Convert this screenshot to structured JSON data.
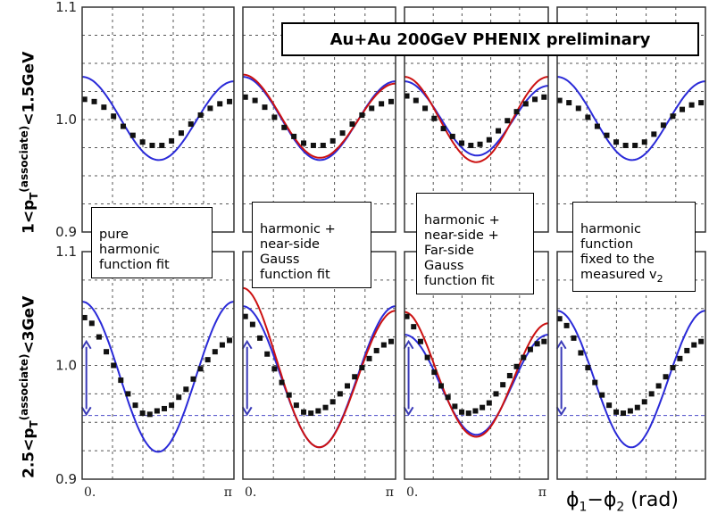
{
  "label": "Au+Au 200GeV PHENIX preliminary",
  "ylabel_top": {
    "pre": "1<p",
    "sub": "T",
    "sup": "(associate)",
    "post": "<1.5GeV"
  },
  "ylabel_bottom": {
    "pre": "2.5<p",
    "sub": "T",
    "sup": "(associate)",
    "post": "<3GeV"
  },
  "xlabel": {
    "phi1": "ϕ",
    "sub1": "1",
    "minus": "−ϕ",
    "sub2": "2",
    "unit": " (rad)"
  },
  "notes": [
    {
      "text": "pure\nharmonic\nfunction fit"
    },
    {
      "text": "harmonic +\nnear-side\nGauss\nfunction fit"
    },
    {
      "text": "harmonic +\nnear-side +\nFar-side\nGauss\nfunction fit"
    },
    {
      "text": "harmonic\nfunction\nfixed to the\nmeasured v",
      "sub": "2"
    }
  ],
  "colors": {
    "data": "#111111",
    "harmonic_fit": "#2a2ad8",
    "gauss_fit": "#cc1111",
    "arrow": "#3a3ab8",
    "reference_line": "#4a4ac8"
  },
  "chart_data": {
    "type": "scatter",
    "x_range": [
      0,
      3.1416
    ],
    "x_tick_labels": [
      "0.",
      "π"
    ],
    "rows": [
      {
        "name": "1<pT(associate)<1.5GeV",
        "ylim": [
          0.9,
          1.1
        ],
        "y_ticks": [
          0.9,
          1.0,
          1.1
        ],
        "y_tick_labels": [
          "0.9",
          "1.0",
          "1.1"
        ],
        "panels": [
          {
            "data": {
              "x": [
                0.05,
                0.25,
                0.45,
                0.65,
                0.85,
                1.05,
                1.25,
                1.45,
                1.65,
                1.85,
                2.05,
                2.25,
                2.45,
                2.65,
                2.85,
                3.05
              ],
              "y": [
                1.018,
                1.016,
                1.011,
                1.003,
                0.994,
                0.986,
                0.98,
                0.977,
                0.977,
                0.981,
                0.988,
                0.996,
                1.004,
                1.01,
                1.014,
                1.016
              ]
            },
            "fits": [
              {
                "kind": "harmonic",
                "color": "harmonic_fit",
                "y0": 1.0,
                "a1": 0.001,
                "a2": 0.018
              }
            ]
          },
          {
            "data": {
              "x": [
                0.05,
                0.25,
                0.45,
                0.65,
                0.85,
                1.05,
                1.25,
                1.45,
                1.65,
                1.85,
                2.05,
                2.25,
                2.45,
                2.65,
                2.85,
                3.05
              ],
              "y": [
                1.02,
                1.017,
                1.011,
                1.002,
                0.993,
                0.985,
                0.979,
                0.977,
                0.977,
                0.981,
                0.988,
                0.996,
                1.004,
                1.01,
                1.014,
                1.016
              ]
            },
            "fits": [
              {
                "kind": "harmonic",
                "color": "harmonic_fit",
                "y0": 1.0,
                "a1": 0.001,
                "a2": 0.018
              },
              {
                "kind": "harmonic+near",
                "color": "gauss_fit",
                "y0": 1.0,
                "a1": 0.001,
                "a2": 0.017,
                "near_amp": 0.004,
                "near_sigma": 0.5
              }
            ]
          },
          {
            "data": {
              "x": [
                0.05,
                0.25,
                0.45,
                0.65,
                0.85,
                1.05,
                1.25,
                1.45,
                1.65,
                1.85,
                2.05,
                2.25,
                2.45,
                2.65,
                2.85,
                3.05
              ],
              "y": [
                1.021,
                1.017,
                1.01,
                1.001,
                0.992,
                0.985,
                0.979,
                0.977,
                0.978,
                0.982,
                0.99,
                0.999,
                1.007,
                1.014,
                1.018,
                1.02
              ]
            },
            "fits": [
              {
                "kind": "harmonic",
                "color": "harmonic_fit",
                "y0": 1.0,
                "a1": 0.001,
                "a2": 0.016
              },
              {
                "kind": "harmonic+near+far",
                "color": "gauss_fit",
                "y0": 0.998,
                "a1": 0.0,
                "a2": 0.018,
                "near_amp": 0.004,
                "near_sigma": 0.5,
                "far_amp": 0.004,
                "far_sigma": 0.6
              }
            ]
          },
          {
            "data": {
              "x": [
                0.05,
                0.25,
                0.45,
                0.65,
                0.85,
                1.05,
                1.25,
                1.45,
                1.65,
                1.85,
                2.05,
                2.25,
                2.45,
                2.65,
                2.85,
                3.05
              ],
              "y": [
                1.017,
                1.015,
                1.01,
                1.002,
                0.994,
                0.986,
                0.98,
                0.977,
                0.977,
                0.98,
                0.987,
                0.995,
                1.003,
                1.009,
                1.013,
                1.015
              ]
            },
            "fits": [
              {
                "kind": "harmonic",
                "color": "harmonic_fit",
                "y0": 1.0,
                "a1": 0.001,
                "a2": 0.018
              }
            ]
          }
        ]
      },
      {
        "name": "2.5<pT(associate)<3GeV",
        "ylim": [
          0.9,
          1.1
        ],
        "y_ticks": [
          0.9,
          1.0,
          1.1
        ],
        "y_tick_labels": [
          "0.9",
          "1.0",
          "1.1"
        ],
        "reference_y": 0.956,
        "arrow": {
          "x": 0.05,
          "y_from": 0.957,
          "y_to": 1.021
        },
        "panels": [
          {
            "data": {
              "x": [
                0.05,
                0.2,
                0.35,
                0.5,
                0.65,
                0.8,
                0.95,
                1.1,
                1.25,
                1.4,
                1.55,
                1.7,
                1.85,
                2.0,
                2.15,
                2.3,
                2.45,
                2.6,
                2.75,
                2.9,
                3.05
              ],
              "y": [
                1.042,
                1.037,
                1.025,
                1.012,
                1.0,
                0.987,
                0.975,
                0.965,
                0.958,
                0.957,
                0.96,
                0.962,
                0.965,
                0.972,
                0.979,
                0.988,
                0.997,
                1.005,
                1.012,
                1.018,
                1.022
              ]
            },
            "fits": [
              {
                "kind": "harmonic",
                "color": "harmonic_fit",
                "y0": 0.99,
                "a1": 0.0,
                "a2": 0.033
              }
            ]
          },
          {
            "data": {
              "x": [
                0.05,
                0.2,
                0.35,
                0.5,
                0.65,
                0.8,
                0.95,
                1.1,
                1.25,
                1.4,
                1.55,
                1.7,
                1.85,
                2.0,
                2.15,
                2.3,
                2.45,
                2.6,
                2.75,
                2.9,
                3.05
              ],
              "y": [
                1.043,
                1.036,
                1.024,
                1.01,
                0.997,
                0.985,
                0.974,
                0.965,
                0.959,
                0.958,
                0.96,
                0.963,
                0.968,
                0.975,
                0.982,
                0.99,
                0.998,
                1.006,
                1.013,
                1.018,
                1.021
              ]
            },
            "fits": [
              {
                "kind": "harmonic",
                "color": "harmonic_fit",
                "y0": 0.99,
                "a1": 0.0,
                "a2": 0.031
              },
              {
                "kind": "harmonic+near",
                "color": "gauss_fit",
                "y0": 0.988,
                "a1": 0.0,
                "a2": 0.03,
                "near_amp": 0.02,
                "near_sigma": 0.45
              }
            ]
          },
          {
            "data": {
              "x": [
                0.05,
                0.2,
                0.35,
                0.5,
                0.65,
                0.8,
                0.95,
                1.1,
                1.25,
                1.4,
                1.55,
                1.7,
                1.85,
                2.0,
                2.15,
                2.3,
                2.45,
                2.6,
                2.75,
                2.9,
                3.05
              ],
              "y": [
                1.043,
                1.034,
                1.021,
                1.007,
                0.994,
                0.982,
                0.972,
                0.964,
                0.959,
                0.958,
                0.96,
                0.963,
                0.967,
                0.975,
                0.983,
                0.991,
                0.999,
                1.007,
                1.014,
                1.019,
                1.021
              ]
            },
            "fits": [
              {
                "kind": "harmonic",
                "color": "harmonic_fit",
                "y0": 0.983,
                "a1": 0.0,
                "a2": 0.022
              },
              {
                "kind": "harmonic+near+far",
                "color": "gauss_fit",
                "y0": 0.981,
                "a1": 0.0,
                "a2": 0.022,
                "near_amp": 0.022,
                "near_sigma": 0.45,
                "far_amp": 0.012,
                "far_sigma": 0.55
              }
            ]
          },
          {
            "data": {
              "x": [
                0.05,
                0.2,
                0.35,
                0.5,
                0.65,
                0.8,
                0.95,
                1.1,
                1.25,
                1.4,
                1.55,
                1.7,
                1.85,
                2.0,
                2.15,
                2.3,
                2.45,
                2.6,
                2.75,
                2.9,
                3.05
              ],
              "y": [
                1.041,
                1.035,
                1.024,
                1.011,
                0.998,
                0.985,
                0.974,
                0.965,
                0.959,
                0.958,
                0.96,
                0.963,
                0.968,
                0.975,
                0.982,
                0.99,
                0.998,
                1.006,
                1.013,
                1.018,
                1.021
              ]
            },
            "fits": [
              {
                "kind": "harmonic",
                "color": "harmonic_fit",
                "y0": 0.988,
                "a1": 0.0,
                "a2": 0.03
              }
            ]
          }
        ]
      }
    ]
  }
}
